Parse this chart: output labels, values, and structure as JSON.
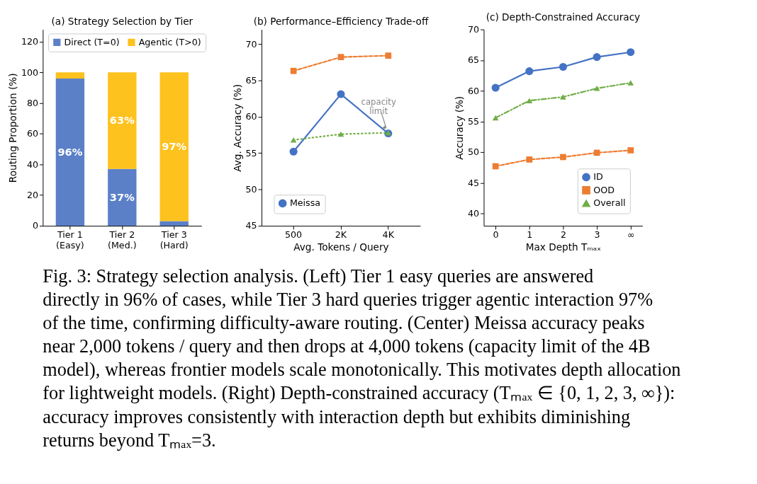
{
  "chart_data": [
    {
      "type": "bar",
      "title": "(a) Strategy Selection by Tier",
      "ylabel": "Routing Proportion (%)",
      "categories": [
        "Tier 1\n(Easy)",
        "Tier 2\n(Med.)",
        "Tier 3\n(Hard)"
      ],
      "stacked": true,
      "series": [
        {
          "name": "Direct (T=0)",
          "color": "#5b80c8",
          "values": [
            96,
            37,
            3
          ],
          "value_labels": [
            "96%",
            "37%",
            null
          ]
        },
        {
          "name": "Agentic (T>0)",
          "color": "#fdc21e",
          "values": [
            4,
            63,
            97
          ],
          "value_labels": [
            null,
            "63%",
            "97%"
          ]
        }
      ],
      "ylim": [
        0,
        128
      ],
      "yticks": [
        0,
        20,
        40,
        60,
        80,
        100,
        120
      ],
      "grid": false,
      "legend": "top"
    },
    {
      "type": "line",
      "title": "(b) Performance–Efficiency Trade-off",
      "xlabel": "Avg. Tokens / Query",
      "ylabel": "Avg. Accuracy (%)",
      "categories": [
        "500",
        "2K",
        "4K"
      ],
      "series": [
        {
          "name": "Meissa",
          "color": "#4472c4",
          "values": [
            55.2,
            63.1,
            57.7
          ],
          "marker": "circle",
          "line_style": "solid"
        },
        {
          "color": "#ed7d31",
          "values": [
            66.3,
            68.2,
            68.4
          ],
          "marker": "square",
          "line_style": "dashed"
        },
        {
          "color": "#70ad47",
          "values": [
            56.8,
            57.6,
            57.8
          ],
          "marker": "triangle",
          "line_style": "dotted"
        }
      ],
      "ylim": [
        45,
        72
      ],
      "yticks": [
        45,
        50,
        55,
        60,
        65,
        70
      ],
      "grid": false,
      "legend": "bottom left",
      "annotations": [
        {
          "text": "capacity limit",
          "x": "4K",
          "y": 57.7
        }
      ]
    },
    {
      "type": "line",
      "title": "(c) Depth-Constrained Accuracy",
      "xlabel": "Max Depth Tₘₐₓ",
      "ylabel": "Accuracy (%)",
      "categories": [
        "0",
        "1",
        "2",
        "3",
        "∞"
      ],
      "series": [
        {
          "name": "ID",
          "color": "#4472c4",
          "values": [
            60.5,
            63.2,
            63.9,
            65.5,
            66.3
          ],
          "marker": "circle",
          "line_style": "solid"
        },
        {
          "name": "OOD",
          "color": "#ed7d31",
          "values": [
            47.7,
            48.8,
            49.2,
            49.9,
            50.3
          ],
          "marker": "square",
          "line_style": "dashed"
        },
        {
          "name": "Overall",
          "color": "#70ad47",
          "values": [
            55.6,
            58.4,
            59.0,
            60.4,
            61.3
          ],
          "marker": "triangle",
          "line_style": "dashdot"
        }
      ],
      "ylim": [
        38,
        70
      ],
      "yticks": [
        40,
        45,
        50,
        55,
        60,
        65,
        70
      ],
      "grid": false,
      "legend": "bottom right"
    },
    {
      "type": "other",
      "annotations": [
        "Fig. 3: Strategy selection analysis. (Left) Tier 1 easy queries are answered directly in 96% of cases, while Tier 3 hard queries trigger agentic interaction 97% of the time, confirming difficulty-aware routing. (Center) Meissa accuracy peaks near 2,000 tokens / query and then drops at 4,000 tokens (capacity limit of the 4B model), whereas frontier models scale monotonically. This motivates depth allocation for lightweight models. (Right) Depth-constrained accuracy (Tₘₐₓ ∈ {0, 1, 2, 3, ∞}): accuracy improves consistently with interaction depth but exhibits diminishing returns beyond Tₘₐₓ=3."
      ]
    }
  ]
}
